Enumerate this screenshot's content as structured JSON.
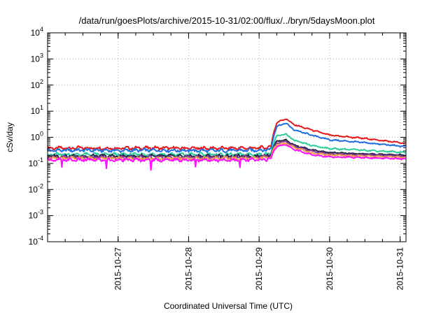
{
  "chart_data": {
    "type": "line",
    "title": "/data/run/goesPlots/archive/2015-10-31/02:00/flux/../bryn/5daysMoon.plot",
    "xlabel": "Coordinated Universal Time (UTC)",
    "ylabel": "cSv/day",
    "yscale": "log",
    "ylim": [
      0.0001,
      10000
    ],
    "y_ticks": [
      {
        "base": "10",
        "exp": "-4",
        "value": 0.0001
      },
      {
        "base": "10",
        "exp": "-3",
        "value": 0.001
      },
      {
        "base": "10",
        "exp": "-2",
        "value": 0.01
      },
      {
        "base": "10",
        "exp": "-1",
        "value": 0.1
      },
      {
        "base": "10",
        "exp": "0",
        "value": 1
      },
      {
        "base": "10",
        "exp": "1",
        "value": 10
      },
      {
        "base": "10",
        "exp": "2",
        "value": 100
      },
      {
        "base": "10",
        "exp": "3",
        "value": 1000
      },
      {
        "base": "10",
        "exp": "4",
        "value": 10000
      }
    ],
    "xlim": [
      "2015-10-26",
      "2015-10-31T02:00"
    ],
    "x_ticks": [
      "2015-10-27",
      "2015-10-28",
      "2015-10-29",
      "2015-10-30",
      "2015-10-31"
    ],
    "grid": true,
    "x": [
      "2015-10-26T00:00",
      "2015-10-26T12:00",
      "2015-10-27T00:00",
      "2015-10-27T12:00",
      "2015-10-28T00:00",
      "2015-10-28T12:00",
      "2015-10-29T00:00",
      "2015-10-29T04:00",
      "2015-10-29T05:00",
      "2015-10-29T06:00",
      "2015-10-29T09:00",
      "2015-10-29T12:00",
      "2015-10-29T18:00",
      "2015-10-30T00:00",
      "2015-10-30T12:00",
      "2015-10-31T00:00",
      "2015-10-31T02:00"
    ],
    "series": [
      {
        "color": "#e41a1c",
        "values": [
          0.38,
          0.39,
          0.38,
          0.39,
          0.38,
          0.38,
          0.39,
          0.42,
          1.6,
          3.6,
          5.2,
          3.0,
          1.9,
          1.2,
          0.9,
          0.62,
          0.58
        ]
      },
      {
        "color": "#1f6fe0",
        "values": [
          0.31,
          0.32,
          0.31,
          0.32,
          0.31,
          0.31,
          0.32,
          0.34,
          1.2,
          2.6,
          3.5,
          1.9,
          1.2,
          0.8,
          0.62,
          0.46,
          0.44
        ]
      },
      {
        "color": "#2ecc9a",
        "values": [
          0.22,
          0.22,
          0.22,
          0.22,
          0.22,
          0.22,
          0.22,
          0.24,
          0.6,
          1.1,
          1.35,
          0.75,
          0.48,
          0.37,
          0.32,
          0.27,
          0.26
        ]
      },
      {
        "color": "#222244",
        "values": [
          0.19,
          0.19,
          0.19,
          0.19,
          0.19,
          0.19,
          0.19,
          0.21,
          0.45,
          0.7,
          0.8,
          0.5,
          0.32,
          0.26,
          0.23,
          0.21,
          0.2
        ]
      },
      {
        "color": "#8b3a96",
        "values": [
          0.17,
          0.17,
          0.17,
          0.17,
          0.17,
          0.17,
          0.17,
          0.19,
          0.4,
          0.6,
          0.7,
          0.45,
          0.29,
          0.23,
          0.21,
          0.19,
          0.19
        ]
      },
      {
        "color": "#f0a24a",
        "values": [
          0.155,
          0.155,
          0.155,
          0.155,
          0.155,
          0.155,
          0.155,
          0.17,
          0.36,
          0.52,
          0.6,
          0.4,
          0.25,
          0.21,
          0.19,
          0.17,
          0.17
        ]
      },
      {
        "color": "#ff10ff",
        "values": [
          0.135,
          0.135,
          0.135,
          0.135,
          0.135,
          0.135,
          0.135,
          0.15,
          0.3,
          0.45,
          0.52,
          0.34,
          0.21,
          0.18,
          0.165,
          0.15,
          0.15
        ]
      }
    ]
  }
}
